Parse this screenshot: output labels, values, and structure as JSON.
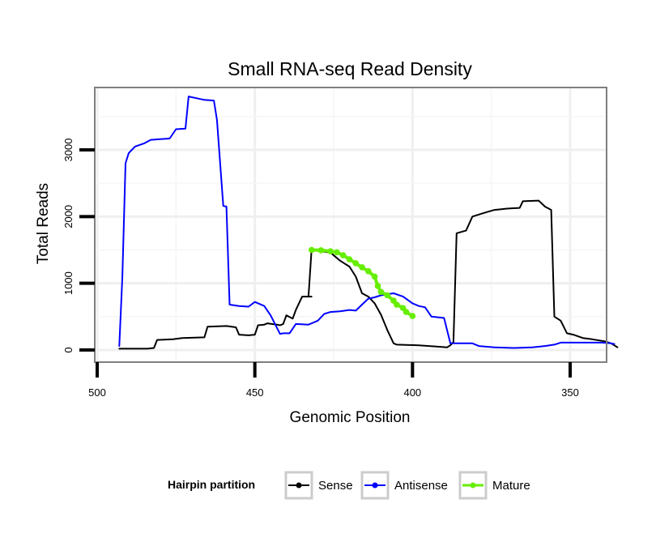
{
  "chart_data": {
    "type": "line",
    "title": "Small RNA-seq Read Density",
    "xlabel": "Genomic Position",
    "ylabel": "Total Reads",
    "xlim": [
      500,
      334
    ],
    "ylim": [
      -200,
      3950
    ],
    "x_reversed": true,
    "grid": true,
    "x_ticks": [
      500,
      450,
      400,
      350
    ],
    "x_tick_labels": [
      "500",
      "450",
      "400",
      "350"
    ],
    "y_ticks": [
      0,
      1000,
      2000,
      3000
    ],
    "y_tick_labels": [
      "0",
      "1000",
      "2000",
      "3000"
    ],
    "legend": {
      "title": "Hairpin partition",
      "position": "bottom",
      "entries": [
        "Sense",
        "Antisense",
        "Mature"
      ]
    },
    "series": [
      {
        "name": "Sense",
        "color": "#000000",
        "points": [
          [
            493,
            20
          ],
          [
            484,
            20
          ],
          [
            482,
            30
          ],
          [
            481,
            150
          ],
          [
            476,
            160
          ],
          [
            473,
            180
          ],
          [
            466,
            190
          ],
          [
            465,
            350
          ],
          [
            459,
            360
          ],
          [
            456,
            340
          ],
          [
            455,
            230
          ],
          [
            452,
            220
          ],
          [
            450,
            230
          ],
          [
            449,
            370
          ],
          [
            447,
            380
          ],
          [
            446,
            400
          ],
          [
            443,
            380
          ],
          [
            442,
            370
          ],
          [
            441,
            390
          ],
          [
            440,
            520
          ],
          [
            438,
            470
          ],
          [
            437,
            600
          ],
          [
            435,
            800
          ],
          [
            432,
            800
          ],
          [
            433,
            800
          ],
          [
            432,
            1500
          ],
          [
            426,
            1460
          ],
          [
            423,
            1340
          ],
          [
            420,
            1250
          ],
          [
            418,
            1100
          ],
          [
            416,
            850
          ],
          [
            414,
            800
          ],
          [
            412,
            700
          ],
          [
            410,
            530
          ],
          [
            408,
            300
          ],
          [
            406,
            100
          ],
          [
            405,
            80
          ],
          [
            398,
            70
          ],
          [
            392,
            50
          ],
          [
            389,
            40
          ],
          [
            388,
            70
          ],
          [
            387,
            120
          ],
          [
            386,
            1750
          ],
          [
            383,
            1790
          ],
          [
            381,
            2000
          ],
          [
            377,
            2060
          ],
          [
            374,
            2100
          ],
          [
            370,
            2120
          ],
          [
            366,
            2130
          ],
          [
            365,
            2230
          ],
          [
            360,
            2240
          ],
          [
            358,
            2150
          ],
          [
            356,
            2100
          ],
          [
            355,
            500
          ],
          [
            353,
            440
          ],
          [
            351,
            250
          ],
          [
            349,
            230
          ],
          [
            346,
            180
          ],
          [
            343,
            160
          ],
          [
            339,
            130
          ],
          [
            337,
            100
          ],
          [
            335,
            40
          ]
        ]
      },
      {
        "name": "Antisense",
        "color": "#0000ff",
        "points": [
          [
            493,
            60
          ],
          [
            492,
            1100
          ],
          [
            491,
            2800
          ],
          [
            490,
            2950
          ],
          [
            488,
            3050
          ],
          [
            485,
            3100
          ],
          [
            483,
            3150
          ],
          [
            480,
            3160
          ],
          [
            477,
            3170
          ],
          [
            475,
            3310
          ],
          [
            472,
            3320
          ],
          [
            471,
            3800
          ],
          [
            469,
            3780
          ],
          [
            466,
            3750
          ],
          [
            463,
            3740
          ],
          [
            462,
            3450
          ],
          [
            460,
            2160
          ],
          [
            459,
            2150
          ],
          [
            458,
            680
          ],
          [
            455,
            660
          ],
          [
            452,
            650
          ],
          [
            450,
            720
          ],
          [
            447,
            660
          ],
          [
            445,
            520
          ],
          [
            442,
            240
          ],
          [
            441,
            250
          ],
          [
            439,
            250
          ],
          [
            437,
            390
          ],
          [
            433,
            380
          ],
          [
            430,
            440
          ],
          [
            428,
            540
          ],
          [
            426,
            570
          ],
          [
            423,
            580
          ],
          [
            420,
            600
          ],
          [
            418,
            590
          ],
          [
            416,
            680
          ],
          [
            414,
            770
          ],
          [
            412,
            790
          ],
          [
            410,
            820
          ],
          [
            406,
            850
          ],
          [
            403,
            800
          ],
          [
            400,
            700
          ],
          [
            398,
            660
          ],
          [
            396,
            640
          ],
          [
            394,
            500
          ],
          [
            390,
            480
          ],
          [
            388,
            100
          ],
          [
            381,
            100
          ],
          [
            379,
            60
          ],
          [
            374,
            40
          ],
          [
            368,
            30
          ],
          [
            362,
            40
          ],
          [
            358,
            60
          ],
          [
            355,
            80
          ],
          [
            353,
            110
          ],
          [
            350,
            110
          ],
          [
            346,
            110
          ],
          [
            340,
            110
          ],
          [
            337,
            100
          ],
          [
            336,
            90
          ]
        ]
      },
      {
        "name": "Mature",
        "color": "#66ee00",
        "points": [
          [
            432,
            1500
          ],
          [
            429,
            1495
          ],
          [
            426,
            1480
          ],
          [
            424,
            1465
          ],
          [
            422,
            1420
          ],
          [
            420,
            1360
          ],
          [
            418,
            1300
          ],
          [
            416,
            1240
          ],
          [
            414,
            1180
          ],
          [
            412,
            1100
          ],
          [
            411,
            960
          ],
          [
            410,
            870
          ],
          [
            408,
            820
          ],
          [
            406,
            740
          ],
          [
            405,
            680
          ],
          [
            403,
            630
          ],
          [
            402,
            570
          ],
          [
            400,
            510
          ]
        ]
      }
    ]
  }
}
